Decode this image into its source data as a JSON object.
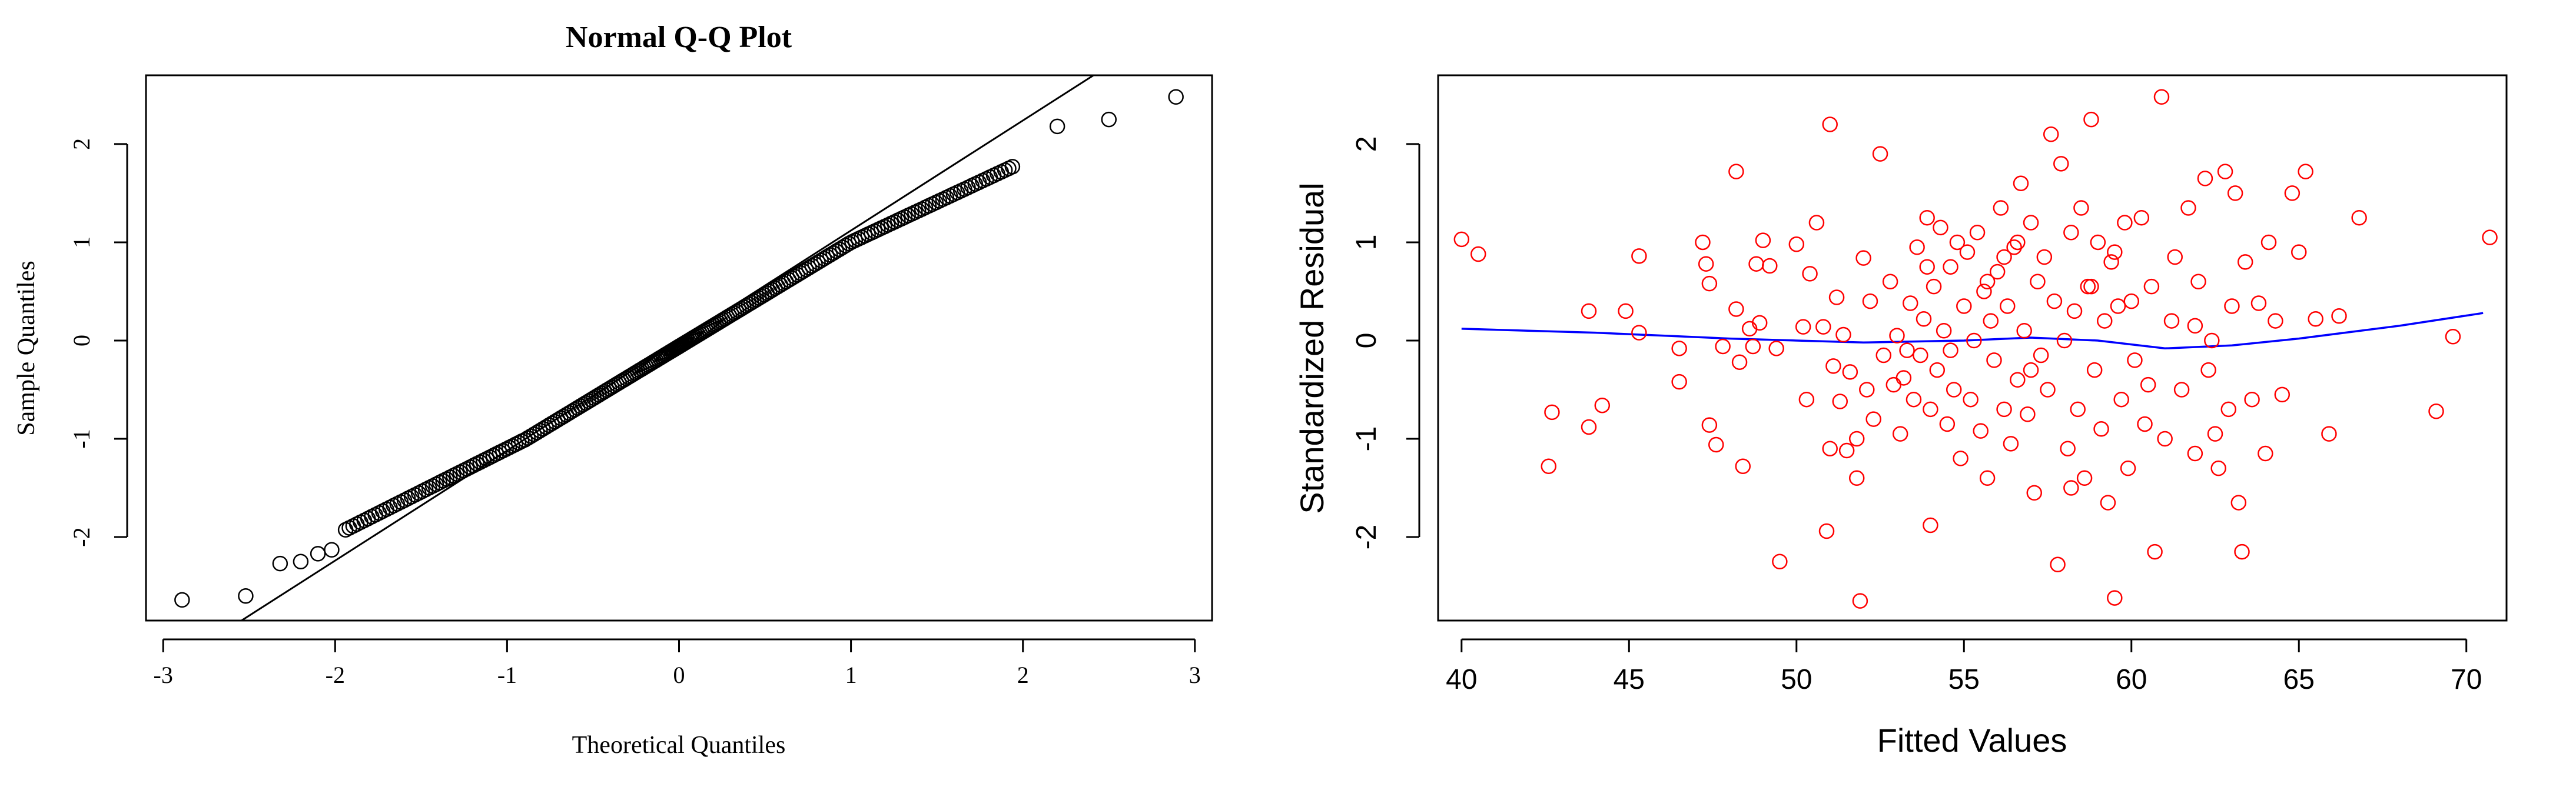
{
  "chart_data": [
    {
      "type": "scatter",
      "title": "Normal Q-Q Plot",
      "xlabel": "Theoretical Quantiles",
      "ylabel": "Sample Quantiles",
      "xlim": [
        -3.1,
        3.1
      ],
      "ylim": [
        -2.85,
        2.7
      ],
      "xticks": [
        -3,
        -2,
        -1,
        0,
        1,
        2,
        3
      ],
      "yticks": [
        -2,
        -1,
        0,
        1,
        2
      ],
      "xtick_labels": [
        "-3",
        "-2",
        "-1",
        "0",
        "1",
        "2",
        "3"
      ],
      "ytick_labels": [
        "-2",
        "-1",
        "0",
        "1",
        "2"
      ],
      "grid": false,
      "point_color": "#000000",
      "reference_line": {
        "intercept": 0.0,
        "slope": 1.12,
        "color": "#000000"
      },
      "tail_points": [
        [
          -2.89,
          -2.64
        ],
        [
          -2.52,
          -2.6
        ],
        [
          -2.32,
          -2.27
        ],
        [
          -2.2,
          -2.25
        ],
        [
          -2.1,
          -2.17
        ],
        [
          -2.02,
          -2.13
        ],
        [
          2.2,
          2.18
        ],
        [
          2.5,
          2.25
        ],
        [
          2.89,
          2.48
        ]
      ],
      "body_n": 240,
      "body_x_range": [
        -1.95,
        1.95
      ],
      "body_points_y": "piecewise: 0.88*x - 0.22 (x<-0.9); 1.06*x - 0.06 (-0.9..1.0); 0.82*x + 0.18 (x>1.0)"
    },
    {
      "type": "scatter",
      "title": "",
      "xlabel": "Fitted Values",
      "ylabel": "Standardized Residual",
      "xlim": [
        39.3,
        71.2
      ],
      "ylim": [
        -2.85,
        2.7
      ],
      "xticks": [
        40,
        45,
        50,
        55,
        60,
        65,
        70
      ],
      "yticks": [
        -2,
        -1,
        0,
        1,
        2
      ],
      "xtick_labels": [
        "40",
        "45",
        "50",
        "55",
        "60",
        "65",
        "70"
      ],
      "ytick_labels": [
        "-2",
        "-1",
        "0",
        "1",
        "2"
      ],
      "grid": false,
      "point_color": "#ff0000",
      "smooth_color": "#0000ff",
      "smooth_line": [
        [
          40,
          0.12
        ],
        [
          44,
          0.08
        ],
        [
          48,
          0.02
        ],
        [
          52,
          -0.02
        ],
        [
          55,
          0.0
        ],
        [
          57,
          0.03
        ],
        [
          59,
          0.0
        ],
        [
          61,
          -0.08
        ],
        [
          63,
          -0.05
        ],
        [
          65,
          0.02
        ],
        [
          68,
          0.15
        ],
        [
          70.5,
          0.28
        ]
      ],
      "points": [
        [
          40.0,
          1.03
        ],
        [
          40.5,
          0.88
        ],
        [
          42.6,
          -1.28
        ],
        [
          42.7,
          -0.73
        ],
        [
          43.8,
          0.3
        ],
        [
          43.8,
          -0.88
        ],
        [
          44.2,
          -0.66
        ],
        [
          44.9,
          0.3
        ],
        [
          45.3,
          0.86
        ],
        [
          45.3,
          0.08
        ],
        [
          46.5,
          -0.08
        ],
        [
          46.5,
          -0.42
        ],
        [
          47.2,
          1.0
        ],
        [
          47.3,
          0.78
        ],
        [
          47.4,
          0.58
        ],
        [
          47.4,
          -0.86
        ],
        [
          47.6,
          -1.06
        ],
        [
          47.8,
          -0.06
        ],
        [
          48.2,
          1.72
        ],
        [
          48.2,
          0.32
        ],
        [
          48.3,
          -0.22
        ],
        [
          48.4,
          -1.28
        ],
        [
          48.6,
          0.12
        ],
        [
          48.7,
          -0.06
        ],
        [
          48.8,
          0.78
        ],
        [
          48.9,
          0.18
        ],
        [
          49.0,
          1.02
        ],
        [
          49.2,
          0.76
        ],
        [
          49.4,
          -0.08
        ],
        [
          49.5,
          -2.25
        ],
        [
          50.0,
          0.98
        ],
        [
          50.2,
          0.14
        ],
        [
          50.3,
          -0.6
        ],
        [
          50.4,
          0.68
        ],
        [
          50.6,
          1.2
        ],
        [
          50.8,
          0.14
        ],
        [
          50.9,
          -1.94
        ],
        [
          51.0,
          2.2
        ],
        [
          51.0,
          -1.1
        ],
        [
          51.1,
          -0.26
        ],
        [
          51.2,
          0.44
        ],
        [
          51.3,
          -0.62
        ],
        [
          51.4,
          0.06
        ],
        [
          51.5,
          -1.12
        ],
        [
          51.6,
          -0.32
        ],
        [
          51.8,
          -1.0
        ],
        [
          51.8,
          -1.4
        ],
        [
          51.9,
          -2.65
        ],
        [
          52.0,
          0.84
        ],
        [
          52.1,
          -0.5
        ],
        [
          52.2,
          0.4
        ],
        [
          52.3,
          -0.8
        ],
        [
          52.5,
          1.9
        ],
        [
          52.6,
          -0.15
        ],
        [
          52.8,
          0.6
        ],
        [
          52.9,
          -0.45
        ],
        [
          53.0,
          0.05
        ],
        [
          53.1,
          -0.95
        ],
        [
          53.2,
          -0.38
        ],
        [
          53.4,
          0.38
        ],
        [
          53.5,
          -0.6
        ],
        [
          53.6,
          0.95
        ],
        [
          53.7,
          -0.15
        ],
        [
          53.8,
          0.22
        ],
        [
          53.9,
          1.25
        ],
        [
          54.0,
          -0.7
        ],
        [
          54.0,
          -1.88
        ],
        [
          54.1,
          0.55
        ],
        [
          54.2,
          -0.3
        ],
        [
          54.3,
          1.15
        ],
        [
          54.4,
          0.1
        ],
        [
          54.5,
          -0.85
        ],
        [
          54.6,
          0.75
        ],
        [
          54.7,
          -0.5
        ],
        [
          54.8,
          1.0
        ],
        [
          54.9,
          -1.2
        ],
        [
          55.0,
          0.35
        ],
        [
          55.1,
          0.9
        ],
        [
          55.2,
          -0.6
        ],
        [
          55.3,
          0.0
        ],
        [
          55.4,
          1.1
        ],
        [
          55.5,
          -0.92
        ],
        [
          55.6,
          0.5
        ],
        [
          55.7,
          -1.4
        ],
        [
          55.8,
          0.2
        ],
        [
          55.9,
          -0.2
        ],
        [
          56.0,
          0.7
        ],
        [
          56.1,
          1.35
        ],
        [
          56.2,
          -0.7
        ],
        [
          56.3,
          0.35
        ],
        [
          56.4,
          -1.05
        ],
        [
          56.5,
          0.95
        ],
        [
          56.6,
          -0.4
        ],
        [
          56.7,
          1.6
        ],
        [
          56.8,
          0.1
        ],
        [
          56.9,
          -0.75
        ],
        [
          57.0,
          1.2
        ],
        [
          57.1,
          -1.55
        ],
        [
          57.2,
          0.6
        ],
        [
          57.3,
          -0.15
        ],
        [
          57.4,
          0.85
        ],
        [
          57.5,
          -0.5
        ],
        [
          57.6,
          2.1
        ],
        [
          57.7,
          0.4
        ],
        [
          57.8,
          -2.28
        ],
        [
          57.9,
          1.8
        ],
        [
          58.0,
          0.0
        ],
        [
          58.1,
          -1.1
        ],
        [
          58.2,
          1.1
        ],
        [
          58.3,
          0.3
        ],
        [
          58.4,
          -0.7
        ],
        [
          58.5,
          1.35
        ],
        [
          58.6,
          -1.4
        ],
        [
          58.7,
          0.55
        ],
        [
          58.8,
          2.25
        ],
        [
          58.9,
          -0.3
        ],
        [
          59.0,
          1.0
        ],
        [
          59.1,
          -0.9
        ],
        [
          59.2,
          0.2
        ],
        [
          59.3,
          -1.65
        ],
        [
          59.4,
          0.8
        ],
        [
          59.5,
          -2.62
        ],
        [
          59.6,
          0.35
        ],
        [
          59.7,
          -0.6
        ],
        [
          59.8,
          1.2
        ],
        [
          59.9,
          -1.3
        ],
        [
          60.0,
          0.4
        ],
        [
          60.1,
          -0.2
        ],
        [
          60.3,
          1.25
        ],
        [
          60.4,
          -0.85
        ],
        [
          60.6,
          0.55
        ],
        [
          60.7,
          -2.15
        ],
        [
          60.9,
          2.48
        ],
        [
          61.0,
          -1.0
        ],
        [
          61.2,
          0.2
        ],
        [
          61.3,
          0.85
        ],
        [
          61.5,
          -0.5
        ],
        [
          61.7,
          1.35
        ],
        [
          61.9,
          -1.15
        ],
        [
          62.0,
          0.6
        ],
        [
          62.2,
          1.65
        ],
        [
          62.3,
          -0.3
        ],
        [
          62.4,
          0.0
        ],
        [
          62.6,
          -1.3
        ],
        [
          62.8,
          1.72
        ],
        [
          62.9,
          -0.7
        ],
        [
          63.0,
          0.35
        ],
        [
          63.1,
          1.5
        ],
        [
          63.2,
          -1.65
        ],
        [
          63.3,
          -2.15
        ],
        [
          63.4,
          0.8
        ],
        [
          63.6,
          -0.6
        ],
        [
          63.8,
          0.38
        ],
        [
          64.0,
          -1.15
        ],
        [
          64.1,
          1.0
        ],
        [
          64.3,
          0.2
        ],
        [
          64.5,
          -0.55
        ],
        [
          64.8,
          1.5
        ],
        [
          65.0,
          0.9
        ],
        [
          65.2,
          1.72
        ],
        [
          65.5,
          0.22
        ],
        [
          65.9,
          -0.95
        ],
        [
          66.2,
          0.25
        ],
        [
          66.8,
          1.25
        ],
        [
          69.1,
          -0.72
        ],
        [
          69.6,
          0.04
        ],
        [
          70.7,
          1.05
        ],
        [
          56.2,
          0.85
        ],
        [
          53.3,
          -0.1
        ],
        [
          58.8,
          0.55
        ],
        [
          60.5,
          -0.45
        ],
        [
          55.7,
          0.6
        ],
        [
          57.0,
          -0.3
        ],
        [
          61.9,
          0.15
        ],
        [
          54.6,
          -0.1
        ],
        [
          59.5,
          0.9
        ],
        [
          62.5,
          -0.95
        ],
        [
          56.6,
          1.0
        ],
        [
          53.9,
          0.75
        ],
        [
          58.2,
          -1.5
        ]
      ]
    }
  ]
}
